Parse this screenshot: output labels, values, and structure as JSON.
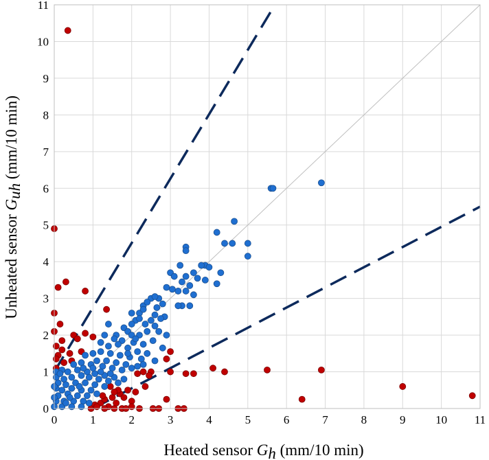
{
  "chart_data": {
    "type": "scatter",
    "title": "",
    "xlabel": "Heated sensor G_h (mm/10 min)",
    "ylabel": "Unheated sensor G_uh (mm/10 min)",
    "xlabel_parts": {
      "pre": "Heated sensor ",
      "sym": "G",
      "sub": "h",
      "post": " (mm/10 min)"
    },
    "ylabel_parts": {
      "pre": "Unheated sensor ",
      "sym": "G",
      "sub": "uh",
      "post": " (mm/10 min)"
    },
    "xlim": [
      0,
      11
    ],
    "ylim": [
      0,
      11
    ],
    "xticks": [
      "0",
      "1",
      "2",
      "3",
      "4",
      "5",
      "6",
      "7",
      "8",
      "9",
      "10",
      "11"
    ],
    "yticks": [
      "0",
      "1",
      "2",
      "3",
      "4",
      "5",
      "6",
      "7",
      "8",
      "9",
      "10",
      "11"
    ],
    "grid": true,
    "legend": "none",
    "colors": {
      "inside": "#1f6fd1",
      "inside_edge": "#1a4f8f",
      "outside": "#c00000",
      "outside_edge": "#7a0000",
      "bound_line": "#0d2a5c",
      "identity_line": "#bfbfbf",
      "grid": "#d9d9d9"
    },
    "reference_lines": [
      {
        "kind": "identity",
        "style": "solid-thin",
        "points": [
          [
            0,
            0
          ],
          [
            11,
            11
          ]
        ]
      },
      {
        "kind": "upper-bound",
        "style": "dashed",
        "points": [
          [
            0,
            1
          ],
          [
            5.7,
            11
          ]
        ]
      },
      {
        "kind": "lower-bound",
        "style": "dashed",
        "points": [
          [
            1,
            0
          ],
          [
            11,
            5.5
          ]
        ]
      }
    ],
    "series": [
      {
        "group": "outside-bounds",
        "color": "#c00000",
        "points": [
          [
            0.35,
            10.3
          ],
          [
            0,
            4.9
          ],
          [
            0.1,
            3.3
          ],
          [
            0.3,
            3.45
          ],
          [
            0.8,
            3.2
          ],
          [
            0,
            2.6
          ],
          [
            0.15,
            2.3
          ],
          [
            0,
            2.1
          ],
          [
            0.2,
            1.85
          ],
          [
            0.5,
            2.0
          ],
          [
            0.6,
            1.9
          ],
          [
            0.8,
            2.05
          ],
          [
            1.0,
            1.95
          ],
          [
            0.05,
            1.7
          ],
          [
            0.2,
            1.6
          ],
          [
            0.1,
            1.45
          ],
          [
            0.4,
            1.5
          ],
          [
            0.05,
            1.35
          ],
          [
            0.25,
            1.25
          ],
          [
            0.45,
            1.3
          ],
          [
            0.7,
            1.55
          ],
          [
            0.05,
            1.1
          ],
          [
            1.35,
            2.7
          ],
          [
            0.95,
            0.0
          ],
          [
            1.05,
            0.1
          ],
          [
            1.2,
            0.15
          ],
          [
            1.3,
            0.25
          ],
          [
            1.5,
            0.3
          ],
          [
            1.6,
            0.15
          ],
          [
            1.4,
            0.05
          ],
          [
            1.7,
            0.4
          ],
          [
            1.8,
            0.3
          ],
          [
            1.9,
            0.5
          ],
          [
            2.0,
            0.2
          ],
          [
            2.2,
            0.0
          ],
          [
            2.0,
            0.05
          ],
          [
            1.3,
            0.0
          ],
          [
            1.55,
            0.0
          ],
          [
            1.75,
            0.0
          ],
          [
            1.85,
            0.0
          ],
          [
            2.1,
            0.45
          ],
          [
            2.15,
            0.95
          ],
          [
            2.3,
            1.0
          ],
          [
            2.5,
            1.0
          ],
          [
            2.9,
            1.35
          ],
          [
            2.55,
            0.0
          ],
          [
            2.7,
            0.0
          ],
          [
            2.9,
            0.25
          ],
          [
            3.0,
            1.55
          ],
          [
            3.0,
            1.0
          ],
          [
            3.2,
            0.0
          ],
          [
            3.35,
            0.0
          ],
          [
            3.4,
            0.95
          ],
          [
            3.6,
            0.95
          ],
          [
            4.1,
            1.1
          ],
          [
            4.4,
            1.0
          ],
          [
            5.5,
            1.05
          ],
          [
            6.4,
            0.25
          ],
          [
            6.9,
            1.05
          ],
          [
            9.0,
            0.6
          ],
          [
            10.8,
            0.35
          ],
          [
            1.45,
            0.6
          ],
          [
            1.65,
            0.5
          ],
          [
            1.25,
            0.35
          ],
          [
            1.1,
            0.05
          ],
          [
            2.35,
            0.6
          ],
          [
            2.45,
            0.9
          ],
          [
            1.55,
            0.45
          ]
        ]
      },
      {
        "group": "within-bounds",
        "color": "#1f6fd1",
        "points": [
          [
            5.6,
            6.0
          ],
          [
            5.65,
            6.0
          ],
          [
            6.9,
            6.15
          ],
          [
            4.65,
            5.1
          ],
          [
            4.2,
            4.8
          ],
          [
            3.4,
            4.4
          ],
          [
            3.4,
            4.3
          ],
          [
            4.4,
            4.5
          ],
          [
            4.6,
            4.5
          ],
          [
            5.0,
            4.5
          ],
          [
            5.0,
            4.15
          ],
          [
            3.9,
            3.9
          ],
          [
            3.8,
            3.9
          ],
          [
            3.25,
            3.9
          ],
          [
            4.0,
            3.85
          ],
          [
            3.6,
            3.7
          ],
          [
            3.0,
            3.7
          ],
          [
            3.1,
            3.6
          ],
          [
            3.4,
            3.6
          ],
          [
            3.7,
            3.55
          ],
          [
            3.9,
            3.5
          ],
          [
            4.3,
            3.7
          ],
          [
            3.3,
            3.45
          ],
          [
            3.5,
            3.35
          ],
          [
            4.2,
            3.4
          ],
          [
            3.2,
            3.2
          ],
          [
            3.4,
            3.2
          ],
          [
            3.6,
            3.1
          ],
          [
            3.05,
            3.25
          ],
          [
            2.9,
            3.3
          ],
          [
            2.7,
            3.0
          ],
          [
            2.5,
            3.0
          ],
          [
            2.6,
            3.05
          ],
          [
            2.3,
            2.8
          ],
          [
            2.4,
            2.9
          ],
          [
            3.3,
            2.8
          ],
          [
            3.2,
            2.8
          ],
          [
            3.5,
            2.8
          ],
          [
            2.8,
            2.85
          ],
          [
            2.0,
            2.6
          ],
          [
            2.2,
            2.6
          ],
          [
            2.3,
            2.7
          ],
          [
            2.6,
            2.55
          ],
          [
            2.85,
            2.5
          ],
          [
            2.75,
            2.45
          ],
          [
            2.1,
            2.4
          ],
          [
            2.2,
            2.45
          ],
          [
            2.5,
            2.4
          ],
          [
            2.0,
            2.3
          ],
          [
            2.35,
            2.3
          ],
          [
            2.6,
            2.25
          ],
          [
            1.4,
            2.3
          ],
          [
            1.8,
            2.2
          ],
          [
            1.9,
            2.1
          ],
          [
            2.0,
            2.0
          ],
          [
            2.2,
            2.0
          ],
          [
            2.4,
            2.1
          ],
          [
            2.7,
            2.1
          ],
          [
            2.9,
            2.0
          ],
          [
            1.6,
            2.0
          ],
          [
            1.3,
            2.0
          ],
          [
            1.55,
            1.9
          ],
          [
            1.75,
            1.85
          ],
          [
            2.05,
            1.8
          ],
          [
            2.3,
            1.75
          ],
          [
            2.55,
            1.85
          ],
          [
            2.8,
            1.65
          ],
          [
            1.2,
            1.8
          ],
          [
            1.4,
            1.7
          ],
          [
            1.65,
            1.75
          ],
          [
            1.9,
            1.65
          ],
          [
            2.15,
            1.55
          ],
          [
            2.4,
            1.5
          ],
          [
            2.6,
            1.3
          ],
          [
            2.25,
            1.35
          ],
          [
            1.95,
            1.4
          ],
          [
            1.7,
            1.45
          ],
          [
            1.45,
            1.5
          ],
          [
            1.2,
            1.55
          ],
          [
            1.0,
            1.5
          ],
          [
            0.8,
            1.45
          ],
          [
            1.1,
            1.3
          ],
          [
            1.35,
            1.3
          ],
          [
            1.6,
            1.25
          ],
          [
            1.85,
            1.2
          ],
          [
            2.0,
            1.1
          ],
          [
            2.15,
            1.15
          ],
          [
            2.3,
            1.2
          ],
          [
            1.75,
            1.05
          ],
          [
            1.5,
            1.1
          ],
          [
            1.25,
            1.15
          ],
          [
            0.95,
            1.2
          ],
          [
            0.7,
            1.25
          ],
          [
            0.5,
            1.2
          ],
          [
            0.35,
            1.0
          ],
          [
            0.2,
            1.05
          ],
          [
            0.05,
            1.0
          ],
          [
            0.6,
            1.05
          ],
          [
            0.85,
            1.0
          ],
          [
            1.05,
            0.95
          ],
          [
            1.3,
            0.9
          ],
          [
            1.55,
            0.85
          ],
          [
            1.8,
            0.8
          ],
          [
            1.65,
            0.7
          ],
          [
            1.4,
            0.75
          ],
          [
            1.15,
            0.8
          ],
          [
            0.9,
            0.85
          ],
          [
            0.7,
            0.9
          ],
          [
            0.45,
            0.85
          ],
          [
            0.25,
            0.8
          ],
          [
            0.05,
            0.85
          ],
          [
            0.1,
            0.7
          ],
          [
            0.3,
            0.65
          ],
          [
            0.55,
            0.7
          ],
          [
            0.8,
            0.7
          ],
          [
            1.05,
            0.65
          ],
          [
            1.3,
            0.6
          ],
          [
            0.95,
            0.5
          ],
          [
            0.7,
            0.5
          ],
          [
            0.45,
            0.55
          ],
          [
            0.2,
            0.5
          ],
          [
            0.05,
            0.55
          ],
          [
            0.1,
            0.35
          ],
          [
            0.35,
            0.4
          ],
          [
            0.6,
            0.35
          ],
          [
            0.85,
            0.35
          ],
          [
            1.1,
            0.4
          ],
          [
            0.75,
            0.2
          ],
          [
            0.5,
            0.2
          ],
          [
            0.25,
            0.2
          ],
          [
            0.05,
            0.2
          ],
          [
            0.0,
            0.05
          ],
          [
            0.2,
            0.05
          ],
          [
            0.45,
            0.05
          ],
          [
            0.7,
            0.05
          ],
          [
            0.9,
            0.15
          ],
          [
            0.0,
            0.3
          ],
          [
            0.0,
            0.6
          ],
          [
            0.15,
            0.95
          ],
          [
            0.4,
            0.3
          ],
          [
            0.65,
            0.6
          ],
          [
            0.3,
            0.15
          ],
          [
            1.2,
            1.0
          ],
          [
            1.45,
            0.95
          ],
          [
            1.9,
            1.5
          ],
          [
            2.1,
            1.9
          ],
          [
            1.0,
            1.1
          ],
          [
            0.75,
            1.1
          ],
          [
            2.65,
            2.75
          ]
        ]
      }
    ]
  }
}
